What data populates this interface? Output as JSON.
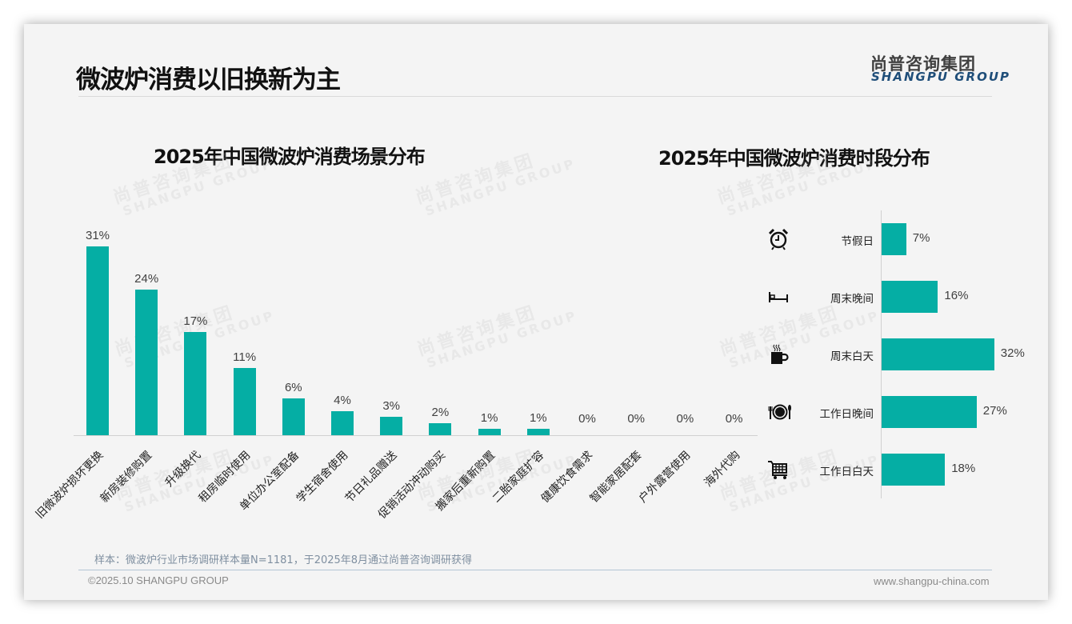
{
  "page": {
    "title": "微波炉消费以旧换新为主",
    "logo_cn": "尚普咨询集团",
    "logo_en": "SHANGPU GROUP",
    "watermark_cn": "尚普咨询集团",
    "watermark_en": "SHANGPU GROUP",
    "sample_note": "样本：微波炉行业市场调研样本量N=1181，于2025年8月通过尚普咨询调研获得",
    "copyright": "©2025.10 SHANGPU GROUP",
    "website": "www.shangpu-china.com",
    "accent_color": "#05aea4"
  },
  "left_chart": {
    "title": "2025年中国微波炉消费场景分布",
    "bars": [
      {
        "label": "旧微波炉损坏更换",
        "value": 31,
        "display": "31%"
      },
      {
        "label": "新房装修购置",
        "value": 24,
        "display": "24%"
      },
      {
        "label": "升级换代",
        "value": 17,
        "display": "17%"
      },
      {
        "label": "租房临时使用",
        "value": 11,
        "display": "11%"
      },
      {
        "label": "单位办公室配备",
        "value": 6,
        "display": "6%"
      },
      {
        "label": "学生宿舍使用",
        "value": 4,
        "display": "4%"
      },
      {
        "label": "节日礼品赠送",
        "value": 3,
        "display": "3%"
      },
      {
        "label": "促销活动冲动购买",
        "value": 2,
        "display": "2%"
      },
      {
        "label": "搬家后重新购置",
        "value": 1,
        "display": "1%"
      },
      {
        "label": "二胎家庭扩容",
        "value": 1,
        "display": "1%"
      },
      {
        "label": "健康饮食需求",
        "value": 0,
        "display": "0%"
      },
      {
        "label": "智能家居配套",
        "value": 0,
        "display": "0%"
      },
      {
        "label": "户外露营使用",
        "value": 0,
        "display": "0%"
      },
      {
        "label": "海外代购",
        "value": 0,
        "display": "0%"
      }
    ]
  },
  "right_chart": {
    "title": "2025年中国微波炉消费时段分布",
    "bars": [
      {
        "label": "节假日",
        "value": 7,
        "display": "7%",
        "icon": "alarm-clock-icon"
      },
      {
        "label": "周末晚间",
        "value": 16,
        "display": "16%",
        "icon": "bed-icon"
      },
      {
        "label": "周末白天",
        "value": 32,
        "display": "32%",
        "icon": "coffee-mug-icon"
      },
      {
        "label": "工作日晚间",
        "value": 27,
        "display": "27%",
        "icon": "plate-cutlery-icon"
      },
      {
        "label": "工作日白天",
        "value": 18,
        "display": "18%",
        "icon": "shopping-cart-icon"
      }
    ]
  },
  "chart_data": [
    {
      "type": "bar",
      "title": "2025年中国微波炉消费场景分布",
      "categories": [
        "旧微波炉损坏更换",
        "新房装修购置",
        "升级换代",
        "租房临时使用",
        "单位办公室配备",
        "学生宿舍使用",
        "节日礼品赠送",
        "促销活动冲动购买",
        "搬家后重新购置",
        "二胎家庭扩容",
        "健康饮食需求",
        "智能家居配套",
        "户外露营使用",
        "海外代购"
      ],
      "values": [
        31,
        24,
        17,
        11,
        6,
        4,
        3,
        2,
        1,
        1,
        0,
        0,
        0,
        0
      ],
      "unit": "%",
      "xlabel": "",
      "ylabel": "",
      "ylim": [
        0,
        35
      ],
      "grid": false,
      "legend": "none",
      "data_labels": true
    },
    {
      "type": "bar",
      "orientation": "horizontal",
      "title": "2025年中国微波炉消费时段分布",
      "categories": [
        "节假日",
        "周末晚间",
        "周末白天",
        "工作日晚间",
        "工作日白天"
      ],
      "values": [
        7,
        16,
        32,
        27,
        18
      ],
      "unit": "%",
      "xlabel": "",
      "ylabel": "",
      "xlim": [
        0,
        35
      ],
      "grid": false,
      "legend": "none",
      "data_labels": true
    }
  ]
}
